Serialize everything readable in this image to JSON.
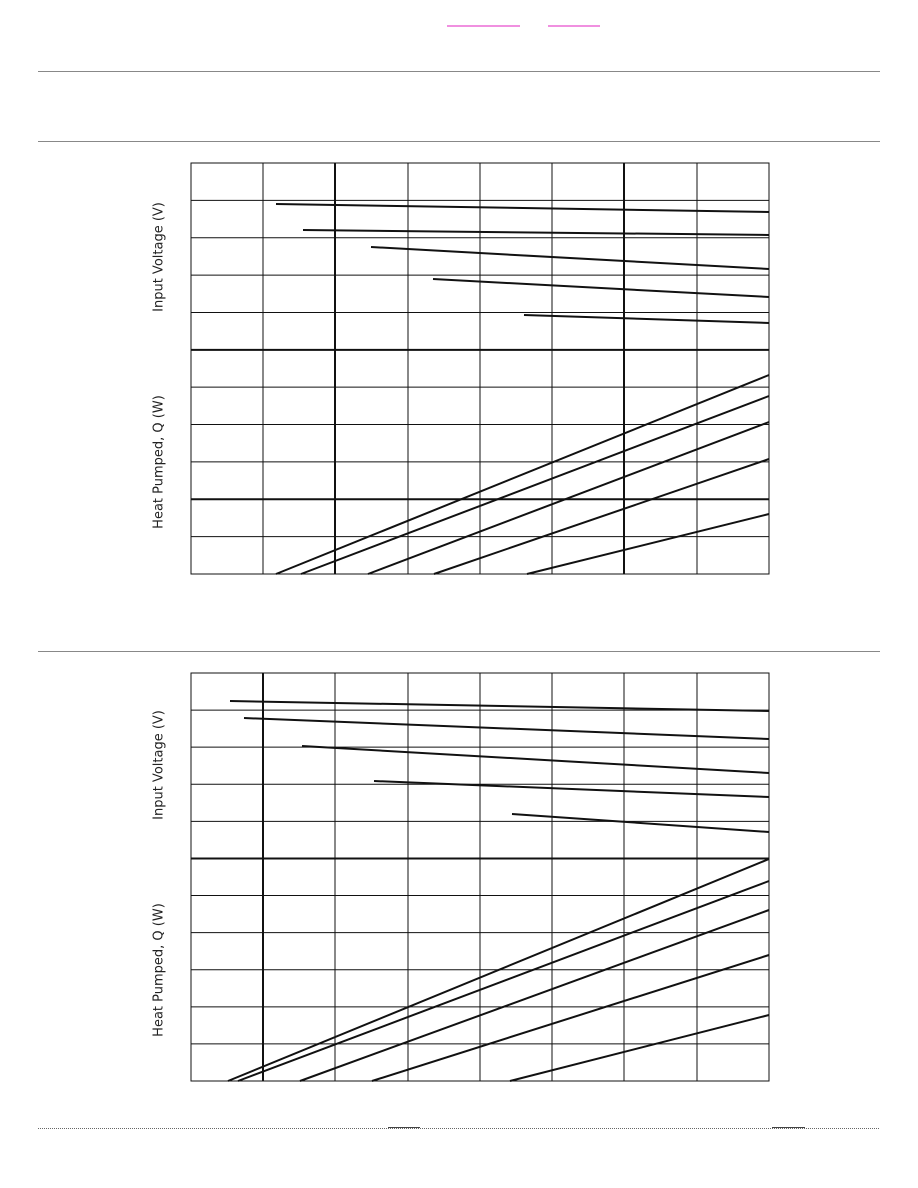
{
  "charts": [
    {
      "y_label_top": "Input Voltage (V)",
      "y_label_bottom": "Heat Pumped, Q (W)"
    },
    {
      "y_label_top": "Input Voltage (V)",
      "y_label_bottom": "Heat Pumped, Q (W)"
    }
  ]
}
